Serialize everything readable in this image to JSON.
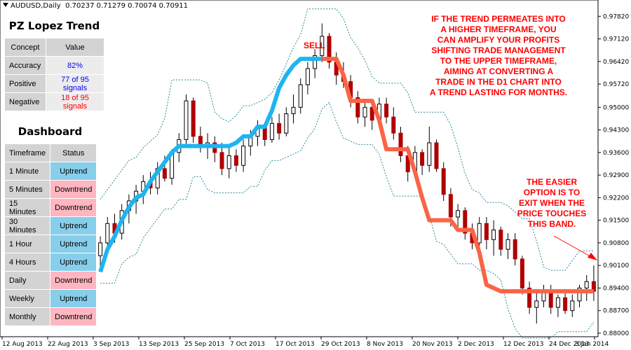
{
  "header": {
    "symbol": "AUDUSD,Daily",
    "ohlc": "0.70237 0.71279 0.70074 0.70911"
  },
  "pz_panel": {
    "title": "PZ Lopez Trend",
    "col_concept": "Concept",
    "col_value": "Value",
    "rows": [
      {
        "concept": "Accuracy",
        "value": "82%",
        "color": "#0000ff"
      },
      {
        "concept": "Positive",
        "value": "77 of 95 signals",
        "color": "#0000ff"
      },
      {
        "concept": "Negative",
        "value": "18 of 95 signals",
        "color": "#ff0000"
      }
    ]
  },
  "dashboard": {
    "title": "Dashboard",
    "col_timeframe": "Timeframe",
    "col_status": "Status",
    "rows": [
      {
        "timeframe": "1 Minute",
        "status": "Uptrend"
      },
      {
        "timeframe": "5 Minutes",
        "status": "Downtrend"
      },
      {
        "timeframe": "15 Minutes",
        "status": "Downtrend"
      },
      {
        "timeframe": "30 Minutes",
        "status": "Uptrend"
      },
      {
        "timeframe": "1 Hour",
        "status": "Uptrend"
      },
      {
        "timeframe": "4 Hours",
        "status": "Uptrend"
      },
      {
        "timeframe": "Daily",
        "status": "Downtrend"
      },
      {
        "timeframe": "Weekly",
        "status": "Uptrend"
      },
      {
        "timeframe": "Monthly",
        "status": "Downtrend"
      }
    ]
  },
  "annotations": {
    "sell_label": "SELL",
    "note_top": [
      "IF THE TREND PERMEATES INTO",
      "A HIGHER TIMEFRAME, YOU",
      "CAN AMPLIFY YOUR PROFITS",
      "SHIFTING TRADE MANAGEMENT",
      "TO THE UPPER TIMEFRAME,",
      "AIMING AT CONVERTING A",
      "TRADE IN THE D1 CHART INTO",
      "A TREND LASTING FOR MONTHS."
    ],
    "note_right": [
      "THE EASIER",
      "OPTION IS TO",
      "EXIT WHEN THE",
      "PRICE TOUCHES",
      "THIS BAND."
    ]
  },
  "colors": {
    "uptrend": "#87ceeb",
    "downtrend": "#ffb6c1",
    "trend_up_line": "#1eb4f0",
    "trend_down_line": "#fa6446",
    "band": "#2b8a94",
    "note": "#ff0000",
    "candle_up": "#000000",
    "candle_down": "#b00000"
  },
  "chart_data": {
    "type": "candlestick",
    "ylim": [
      0.88,
      0.98
    ],
    "y_ticks": [
      "0.97820",
      "0.97120",
      "0.96420",
      "0.95720",
      "0.95000",
      "0.94300",
      "0.93600",
      "0.92900",
      "0.92200",
      "0.91500",
      "0.90800",
      "0.90100",
      "0.89400",
      "0.88700",
      "0.88000"
    ],
    "x_ticks": [
      "12 Aug 2013",
      "22 Aug 2013",
      "3 Sep 2013",
      "13 Sep 2013",
      "25 Sep 2013",
      "7 Oct 2013",
      "17 Oct 2013",
      "29 Oct 2013",
      "8 Nov 2013",
      "20 Nov 2013",
      "2 Dec 2013",
      "12 Dec 2013",
      "24 Dec 2013",
      "3 Jan 2014"
    ],
    "ohlc": [
      [
        0.904,
        0.91,
        0.9,
        0.908
      ],
      [
        0.908,
        0.916,
        0.906,
        0.914
      ],
      [
        0.914,
        0.917,
        0.908,
        0.911
      ],
      [
        0.911,
        0.92,
        0.909,
        0.918
      ],
      [
        0.918,
        0.923,
        0.914,
        0.921
      ],
      [
        0.921,
        0.926,
        0.917,
        0.924
      ],
      [
        0.924,
        0.929,
        0.92,
        0.927
      ],
      [
        0.927,
        0.93,
        0.923,
        0.925
      ],
      [
        0.925,
        0.933,
        0.923,
        0.931
      ],
      [
        0.931,
        0.935,
        0.927,
        0.928
      ],
      [
        0.928,
        0.937,
        0.926,
        0.936
      ],
      [
        0.936,
        0.942,
        0.933,
        0.94
      ],
      [
        0.94,
        0.954,
        0.938,
        0.952
      ],
      [
        0.952,
        0.953,
        0.939,
        0.941
      ],
      [
        0.941,
        0.944,
        0.936,
        0.938
      ],
      [
        0.938,
        0.942,
        0.934,
        0.939
      ],
      [
        0.939,
        0.941,
        0.933,
        0.936
      ],
      [
        0.936,
        0.939,
        0.929,
        0.931
      ],
      [
        0.931,
        0.938,
        0.928,
        0.935
      ],
      [
        0.935,
        0.937,
        0.93,
        0.932
      ],
      [
        0.932,
        0.94,
        0.93,
        0.938
      ],
      [
        0.938,
        0.943,
        0.935,
        0.941
      ],
      [
        0.941,
        0.946,
        0.938,
        0.944
      ],
      [
        0.944,
        0.945,
        0.938,
        0.94
      ],
      [
        0.94,
        0.947,
        0.939,
        0.945
      ],
      [
        0.945,
        0.948,
        0.94,
        0.942
      ],
      [
        0.942,
        0.95,
        0.941,
        0.948
      ],
      [
        0.948,
        0.954,
        0.945,
        0.95
      ],
      [
        0.95,
        0.959,
        0.948,
        0.957
      ],
      [
        0.957,
        0.964,
        0.954,
        0.962
      ],
      [
        0.962,
        0.968,
        0.959,
        0.966
      ],
      [
        0.966,
        0.976,
        0.964,
        0.972
      ],
      [
        0.972,
        0.973,
        0.962,
        0.964
      ],
      [
        0.964,
        0.967,
        0.957,
        0.96
      ],
      [
        0.96,
        0.964,
        0.956,
        0.958
      ],
      [
        0.958,
        0.96,
        0.95,
        0.953
      ],
      [
        0.953,
        0.955,
        0.945,
        0.947
      ],
      [
        0.947,
        0.952,
        0.944,
        0.95
      ],
      [
        0.95,
        0.951,
        0.943,
        0.946
      ],
      [
        0.946,
        0.953,
        0.944,
        0.951
      ],
      [
        0.951,
        0.953,
        0.945,
        0.947
      ],
      [
        0.947,
        0.95,
        0.94,
        0.942
      ],
      [
        0.942,
        0.944,
        0.933,
        0.935
      ],
      [
        0.935,
        0.938,
        0.927,
        0.93
      ],
      [
        0.93,
        0.938,
        0.928,
        0.936
      ],
      [
        0.936,
        0.937,
        0.929,
        0.932
      ],
      [
        0.932,
        0.944,
        0.93,
        0.939
      ],
      [
        0.939,
        0.94,
        0.93,
        0.931
      ],
      [
        0.931,
        0.933,
        0.921,
        0.923
      ],
      [
        0.923,
        0.925,
        0.913,
        0.916
      ],
      [
        0.916,
        0.92,
        0.912,
        0.918
      ],
      [
        0.918,
        0.919,
        0.909,
        0.911
      ],
      [
        0.911,
        0.914,
        0.906,
        0.908
      ],
      [
        0.908,
        0.916,
        0.906,
        0.914
      ],
      [
        0.914,
        0.916,
        0.906,
        0.909
      ],
      [
        0.909,
        0.915,
        0.904,
        0.912
      ],
      [
        0.912,
        0.913,
        0.904,
        0.906
      ],
      [
        0.906,
        0.911,
        0.903,
        0.909
      ],
      [
        0.909,
        0.911,
        0.901,
        0.903
      ],
      [
        0.903,
        0.904,
        0.892,
        0.894
      ],
      [
        0.894,
        0.896,
        0.886,
        0.888
      ],
      [
        0.888,
        0.893,
        0.883,
        0.89
      ],
      [
        0.89,
        0.895,
        0.888,
        0.893
      ],
      [
        0.893,
        0.895,
        0.886,
        0.888
      ],
      [
        0.888,
        0.892,
        0.885,
        0.891
      ],
      [
        0.891,
        0.893,
        0.886,
        0.887
      ],
      [
        0.887,
        0.892,
        0.885,
        0.89
      ],
      [
        0.89,
        0.895,
        0.888,
        0.894
      ],
      [
        0.894,
        0.898,
        0.89,
        0.896
      ],
      [
        0.896,
        0.901,
        0.89,
        0.893
      ]
    ],
    "trend_up": [
      0.899,
      0.906,
      0.91,
      0.915,
      0.919,
      0.922,
      0.923,
      0.927,
      0.93,
      0.933,
      0.936,
      0.938,
      0.938,
      0.938,
      0.938,
      0.938,
      0.938,
      0.938,
      0.938,
      0.939,
      0.941,
      0.941,
      0.944,
      0.944,
      0.949,
      0.956,
      0.96,
      0.963,
      0.965,
      0.965,
      0.965,
      0.965
    ],
    "trend_down_start": 31,
    "trend_down": [
      0.965,
      0.965,
      0.965,
      0.96,
      0.952,
      0.952,
      0.952,
      0.952,
      0.946,
      0.937,
      0.937,
      0.937,
      0.937,
      0.93,
      0.922,
      0.915,
      0.915,
      0.915,
      0.915,
      0.912,
      0.912,
      0.912,
      0.905,
      0.895,
      0.894,
      0.893,
      0.893,
      0.893,
      0.893,
      0.893,
      0.893,
      0.893,
      0.893,
      0.893,
      0.893,
      0.893,
      0.893,
      0.893,
      0.893
    ]
  }
}
